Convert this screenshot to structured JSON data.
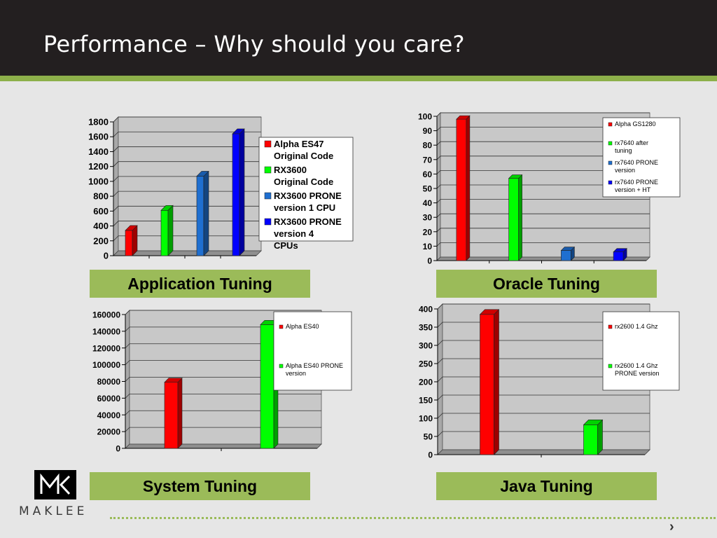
{
  "slide_title": "Performance – Why should you care?",
  "logo_text": "MAKLEE",
  "next_icon": "›",
  "colors": {
    "title_bar": "#231f20",
    "accent": "#9bbb59",
    "plot_bg": "#c8c8c8",
    "red": "#ff0000",
    "green": "#00ff00",
    "steel_blue": "#1f6fd0",
    "blue": "#0000ff"
  },
  "chart_data": [
    {
      "type": "bar",
      "caption": "Application Tuning",
      "categories": [
        "",
        "",
        "",
        ""
      ],
      "series": [
        {
          "name": "Alpha ES47 Original Code",
          "values": [
            340,
            0,
            0,
            0
          ]
        },
        {
          "name": "RX3600 Original Code",
          "values": [
            0,
            610,
            0,
            0
          ]
        },
        {
          "name": "RX3600 PRONE version 1 CPU",
          "values": [
            0,
            0,
            1070,
            0
          ]
        },
        {
          "name": "RX3600 PRONE version 4 CPUs",
          "values": [
            0,
            0,
            0,
            1640
          ]
        }
      ],
      "ylim": [
        0,
        1800
      ],
      "yticks": [
        "0",
        "200",
        "400",
        "600",
        "800",
        "1000",
        "1200",
        "1400",
        "1600",
        "1800"
      ],
      "grid": true,
      "legend_position": "right"
    },
    {
      "type": "bar",
      "caption": "Oracle Tuning",
      "categories": [
        "",
        "",
        "",
        ""
      ],
      "series": [
        {
          "name": "Alpha GS1280",
          "values": [
            98,
            0,
            0,
            0
          ]
        },
        {
          "name": "rx7640 after tuning",
          "values": [
            0,
            57,
            0,
            0
          ]
        },
        {
          "name": "rx7640 PRONE version",
          "values": [
            0,
            0,
            7,
            0
          ]
        },
        {
          "name": "rx7640 PRONE version + HT",
          "values": [
            0,
            0,
            0,
            6
          ]
        }
      ],
      "ylim": [
        0,
        100
      ],
      "yticks": [
        "0",
        "10",
        "20",
        "30",
        "40",
        "50",
        "60",
        "70",
        "80",
        "90",
        "100"
      ],
      "grid": true,
      "legend_position": "top-right"
    },
    {
      "type": "bar",
      "caption": "System Tuning",
      "categories": [
        "",
        ""
      ],
      "series": [
        {
          "name": "Alpha ES40",
          "values": [
            79000,
            0
          ]
        },
        {
          "name": "Alpha ES40 PRONE version",
          "values": [
            0,
            148000
          ]
        }
      ],
      "ylim": [
        0,
        160000
      ],
      "yticks": [
        "0",
        "20000",
        "40000",
        "60000",
        "80000",
        "100000",
        "120000",
        "140000",
        "160000"
      ],
      "grid": true,
      "legend_position": "top-right"
    },
    {
      "type": "bar",
      "caption": "Java Tuning",
      "categories": [
        "",
        ""
      ],
      "series": [
        {
          "name": "rx2600 1.4 Ghz",
          "values": [
            385,
            0
          ]
        },
        {
          "name": "rx2600 1.4 Ghz PRONE version",
          "values": [
            0,
            82
          ]
        }
      ],
      "ylim": [
        0,
        400
      ],
      "yticks": [
        "0",
        "50",
        "100",
        "150",
        "200",
        "250",
        "300",
        "350",
        "400"
      ],
      "grid": true,
      "legend_position": "top-right"
    }
  ]
}
